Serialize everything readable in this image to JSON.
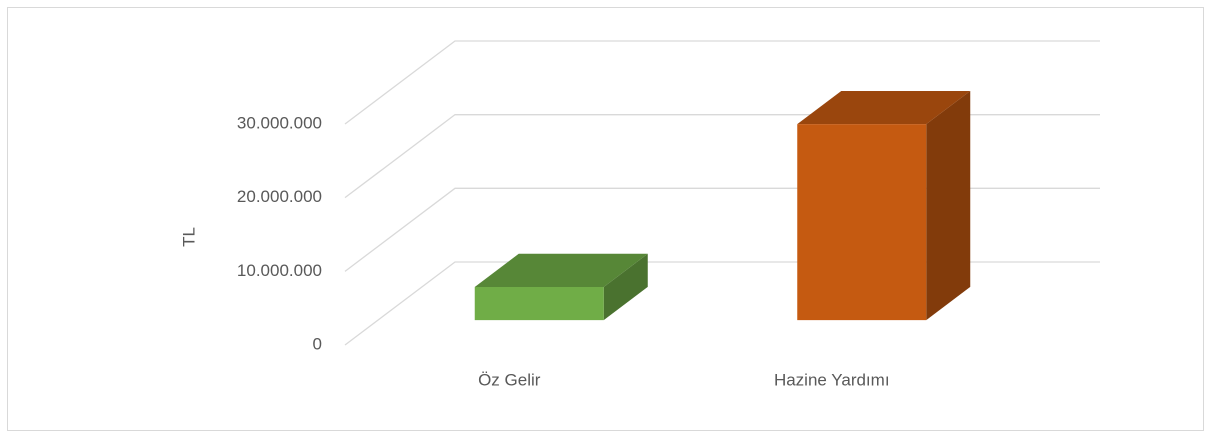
{
  "chart_data": {
    "type": "bar3d",
    "ylabel": "TL",
    "categories": [
      "Öz Gelir",
      "Hazine Yardımı"
    ],
    "values": [
      4500000,
      26600000
    ],
    "colors": [
      "#70ad47",
      "#c55a11"
    ],
    "ylim": [
      0,
      30000000
    ],
    "yticks": [
      0,
      {
        "value": 10000000,
        "label": "10.000.000"
      },
      {
        "value": 20000000,
        "label": "20.000.000"
      },
      {
        "value": 30000000,
        "label": "30.000.000"
      }
    ],
    "grid": true
  }
}
